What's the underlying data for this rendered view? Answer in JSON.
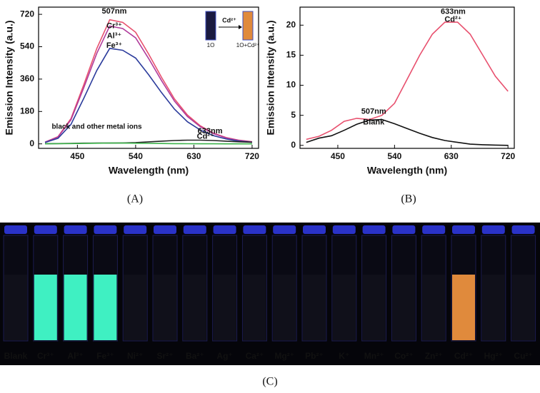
{
  "chart_data": [
    {
      "type": "line",
      "panel": "(A)",
      "xlabel": "Wavelength (nm)",
      "ylabel": "Emission Intensity (a.u.)",
      "x": [
        400,
        420,
        440,
        460,
        480,
        500,
        520,
        540,
        560,
        580,
        600,
        620,
        640,
        660,
        680,
        700,
        720
      ],
      "xlim": [
        390,
        730
      ],
      "xticks": [
        450,
        540,
        630,
        720
      ],
      "ylim": [
        -25,
        760
      ],
      "yticks": [
        0,
        180,
        360,
        540,
        720
      ],
      "series": [
        {
          "name": "Cr³⁺",
          "color": "#e8506e",
          "values": [
            10,
            40,
            140,
            330,
            530,
            690,
            675,
            620,
            500,
            370,
            250,
            160,
            100,
            60,
            35,
            20,
            12
          ]
        },
        {
          "name": "Al³⁺",
          "color": "#b03c9c",
          "values": [
            10,
            38,
            133,
            313,
            503,
            655,
            641,
            589,
            475,
            352,
            238,
            152,
            95,
            57,
            33,
            19,
            11
          ]
        },
        {
          "name": "Fe³⁺",
          "color": "#2c3c9c",
          "values": [
            8,
            31,
            108,
            254,
            408,
            531,
            520,
            477,
            385,
            285,
            193,
            123,
            77,
            46,
            27,
            15,
            9
          ]
        },
        {
          "name": "Cd²⁺",
          "color": "#222222",
          "values": [
            1,
            1.5,
            2.5,
            4,
            4.5,
            4.3,
            5,
            7,
            11,
            15,
            18.5,
            20.5,
            20.5,
            18.5,
            15,
            11.5,
            9
          ]
        },
        {
          "name": "black and other metal ions",
          "color": "#3cb44a",
          "values": [
            0.5,
            1.2,
            1.6,
            2.5,
            3.5,
            4.2,
            4.3,
            3.6,
            2.8,
            2,
            1.3,
            0.8,
            0.5,
            0.2,
            0.1,
            0.05,
            0
          ]
        }
      ],
      "annotations": [
        "507nm",
        "633nm"
      ],
      "inset": {
        "reagent": "Cd²⁺",
        "left_label": "1O",
        "right_label": "1O+Cd²⁺"
      }
    },
    {
      "type": "line",
      "panel": "(B)",
      "xlabel": "Wavelength (nm)",
      "ylabel": "Emission Intensity (a.u.)",
      "x": [
        400,
        420,
        440,
        460,
        480,
        500,
        520,
        540,
        560,
        580,
        600,
        620,
        640,
        660,
        680,
        700,
        720
      ],
      "xlim": [
        390,
        730
      ],
      "xticks": [
        450,
        540,
        630,
        720
      ],
      "ylim": [
        -0.5,
        23
      ],
      "yticks": [
        0,
        5,
        10,
        15,
        20
      ],
      "series": [
        {
          "name": "Cd²⁺",
          "color": "#e8506e",
          "values": [
            1,
            1.5,
            2.5,
            4,
            4.5,
            4.3,
            5,
            7,
            11,
            15,
            18.5,
            20.5,
            20.5,
            18.5,
            15,
            11.5,
            9
          ]
        },
        {
          "name": "Blank",
          "color": "#111111",
          "values": [
            0.5,
            1.2,
            1.6,
            2.5,
            3.5,
            4.2,
            4.3,
            3.6,
            2.8,
            2,
            1.3,
            0.8,
            0.5,
            0.2,
            0.1,
            0.05,
            0
          ]
        }
      ],
      "annotations": [
        "633nm",
        "507nm"
      ]
    }
  ],
  "photo": {
    "panel": "(C)",
    "vials": [
      {
        "label": "Blank",
        "color": "#10101a"
      },
      {
        "label": "Cr³⁺",
        "color": "#3ff0c2"
      },
      {
        "label": "Al³⁺",
        "color": "#3ff0c2"
      },
      {
        "label": "Fe³⁺",
        "color": "#3ff0c2"
      },
      {
        "label": "Ni²⁺",
        "color": "#10101a"
      },
      {
        "label": "Sr²⁺",
        "color": "#10101a"
      },
      {
        "label": "Ba²⁺",
        "color": "#10101a"
      },
      {
        "label": "Ag⁺",
        "color": "#10101a"
      },
      {
        "label": "Ca²⁺",
        "color": "#10101a"
      },
      {
        "label": "Mg²⁺",
        "color": "#10101a"
      },
      {
        "label": "Pb²⁺",
        "color": "#10101a"
      },
      {
        "label": "K⁺",
        "color": "#10101a"
      },
      {
        "label": "Mn²⁺",
        "color": "#10101a"
      },
      {
        "label": "Co²⁺",
        "color": "#10101a"
      },
      {
        "label": "Zn²⁺",
        "color": "#10101a"
      },
      {
        "label": "Cd²⁺",
        "color": "#e08a3c"
      },
      {
        "label": "Hg²⁺",
        "color": "#10101a"
      },
      {
        "label": "Cu²⁺",
        "color": "#10101a"
      }
    ]
  }
}
